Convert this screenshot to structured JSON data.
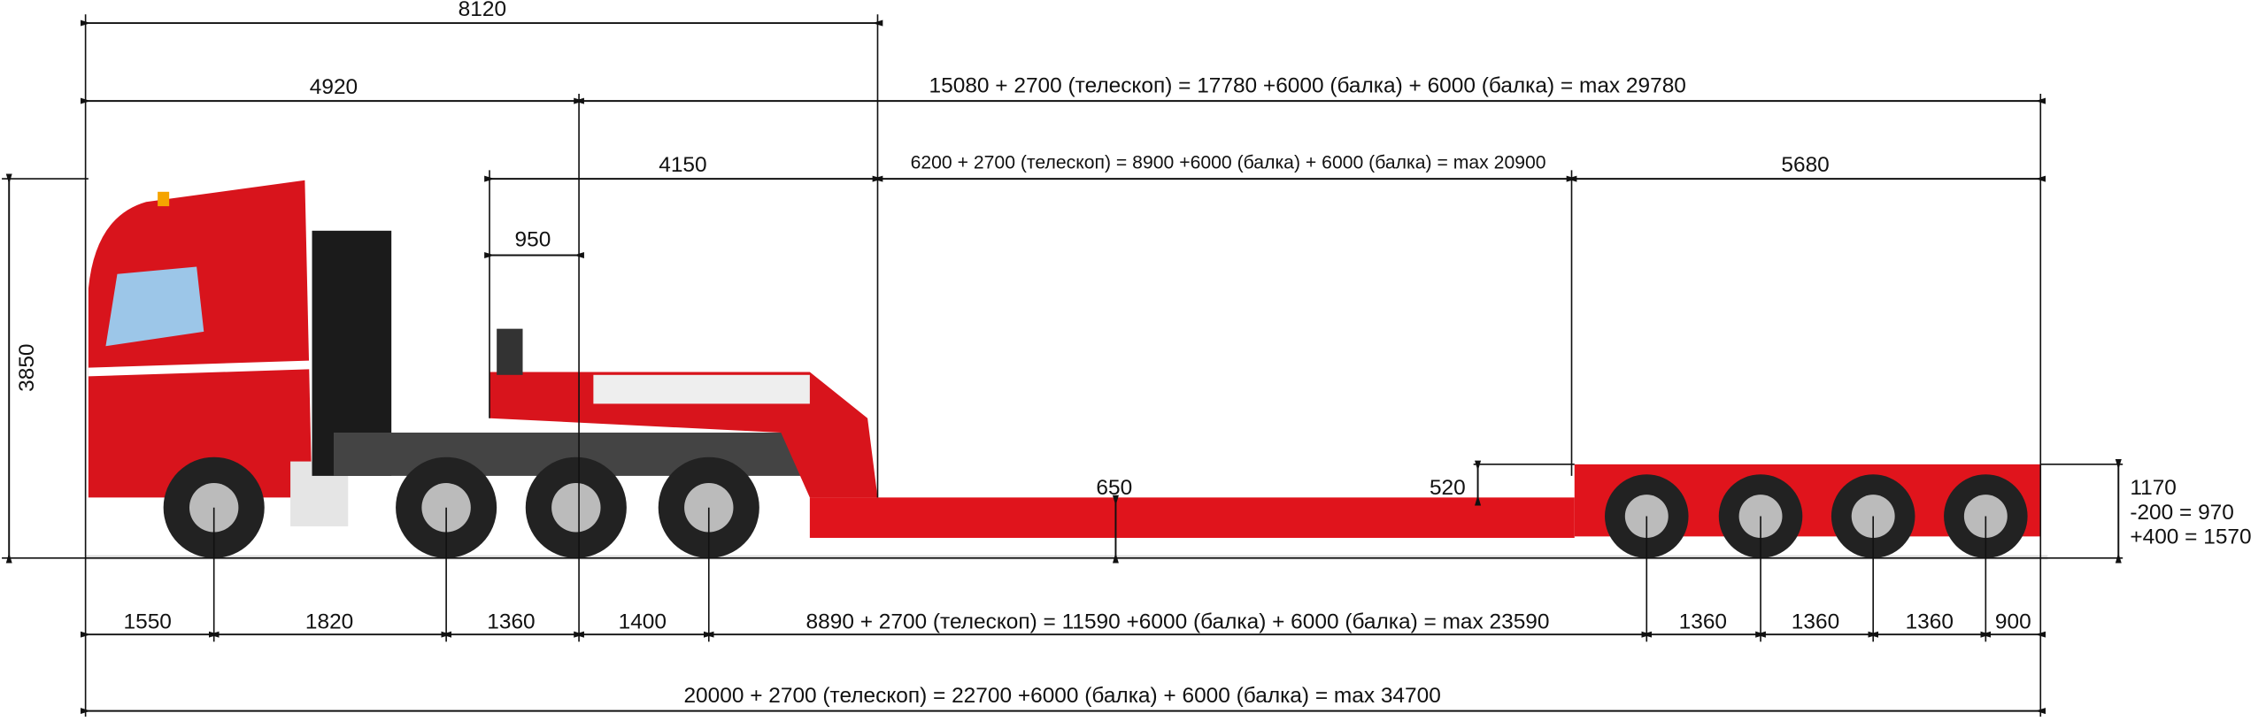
{
  "top_dimensions": [
    "8120",
    "4920",
    "15080 + 2700 (телескоп) = 17780 +6000 (балка) + 6000 (балка) = max 29780",
    "4150",
    "6200 + 2700 (телескоп) = 8900 +6000 (балка) + 6000 (балка) = max 20900",
    "5680",
    "950"
  ],
  "height_dimensions": [
    "3850",
    "650",
    "520",
    "1170",
    "-200 = 970",
    "+400 = 1570"
  ],
  "bottom_dimensions": [
    "1550",
    "1820",
    "1360",
    "1400",
    "8890 + 2700 (телескоп) = 11590 +6000 (балка) + 6000 (балка) = max 23590",
    "1360",
    "1360",
    "1360",
    "900"
  ],
  "overall_length": "20000 + 2700 (телескоп) = 22700 +6000 (балка) + 6000 (балка) = max 34700"
}
